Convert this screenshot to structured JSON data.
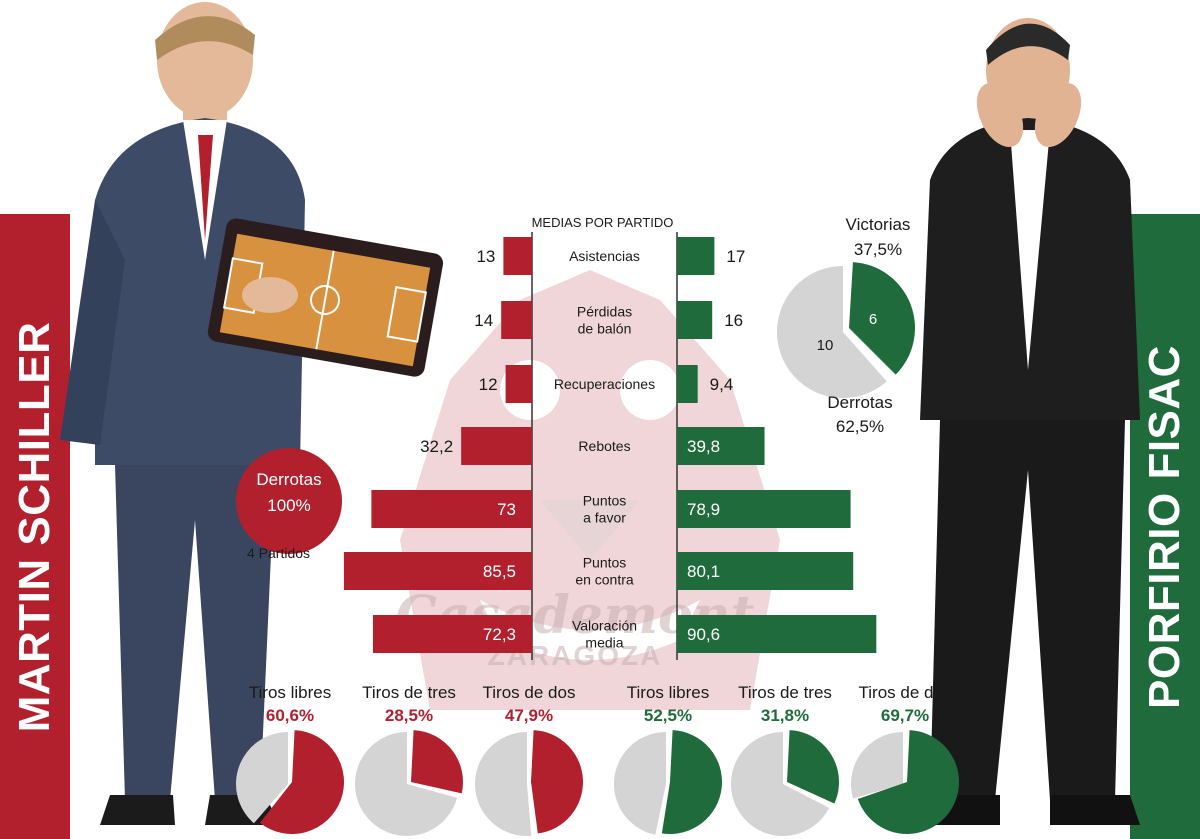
{
  "coaches": {
    "left": {
      "name": "MARTIN SCHILLER",
      "color": "#b2202e"
    },
    "right": {
      "name": "PORFIRIO FISAC",
      "color": "#1f6b3b"
    }
  },
  "watermark": {
    "brand": "Casademont",
    "city": "ZARAGOZA"
  },
  "left_record": {
    "losses_label": "Derrotas",
    "losses_pct": "100%",
    "games": "4 Partidos"
  },
  "right_record": {
    "wins_label": "Victorias",
    "wins_pct": "37,5%",
    "losses_label": "Derrotas",
    "losses_pct": "62,5%",
    "wins_value": "6",
    "losses_value": "10"
  },
  "chart_data": [
    {
      "type": "bar",
      "title": "MEDIAS POR PARTIDO",
      "categories": [
        "Asistencias",
        "Pérdidas de balón",
        "Recuperaciones",
        "Rebotes",
        "Puntos a favor",
        "Puntos en contra",
        "Valoración media"
      ],
      "category_lines": [
        [
          "Asistencias"
        ],
        [
          "Pérdidas",
          "de balón"
        ],
        [
          "Recuperaciones"
        ],
        [
          "Rebotes"
        ],
        [
          "Puntos",
          "a favor"
        ],
        [
          "Puntos",
          "en contra"
        ],
        [
          "Valoración",
          "media"
        ]
      ],
      "series": [
        {
          "name": "MARTIN SCHILLER",
          "values": [
            13,
            14,
            12,
            32.2,
            73,
            85.5,
            72.3
          ],
          "labels": [
            "13",
            "14",
            "12",
            "32,2",
            "73",
            "85,5",
            "72,3"
          ],
          "color": "#b2202e"
        },
        {
          "name": "PORFIRIO FISAC",
          "values": [
            17,
            16,
            9.4,
            39.8,
            78.9,
            80.1,
            90.6
          ],
          "labels": [
            "17",
            "16",
            "9,4",
            "39,8",
            "78,9",
            "80,1",
            "90,6"
          ],
          "color": "#1f6b3b"
        }
      ]
    },
    {
      "type": "pie",
      "labels": [
        "Victorias",
        "Derrotas"
      ],
      "values": [
        6,
        10
      ],
      "percent_labels": [
        "37,5%",
        "62,5%"
      ],
      "colors": [
        "#1f6b3b",
        "#d4d4d4"
      ]
    },
    {
      "type": "pie",
      "groups": [
        {
          "label": "Tiros libres",
          "pct": 60.6,
          "pct_label": "60,6%",
          "team": "left",
          "color": "#b2202e"
        },
        {
          "label": "Tiros de tres",
          "pct": 28.5,
          "pct_label": "28,5%",
          "team": "left",
          "color": "#b2202e"
        },
        {
          "label": "Tiros de dos",
          "pct": 47.9,
          "pct_label": "47,9%",
          "team": "left",
          "color": "#b2202e"
        },
        {
          "label": "Tiros libres",
          "pct": 52.5,
          "pct_label": "52,5%",
          "team": "right",
          "color": "#1f6b3b"
        },
        {
          "label": "Tiros de tres",
          "pct": 31.8,
          "pct_label": "31,8%",
          "team": "right",
          "color": "#1f6b3b"
        },
        {
          "label": "Tiros de dos",
          "pct": 69.7,
          "pct_label": "69,7%",
          "team": "right",
          "color": "#1f6b3b"
        }
      ],
      "rest_color": "#d4d4d4"
    }
  ]
}
